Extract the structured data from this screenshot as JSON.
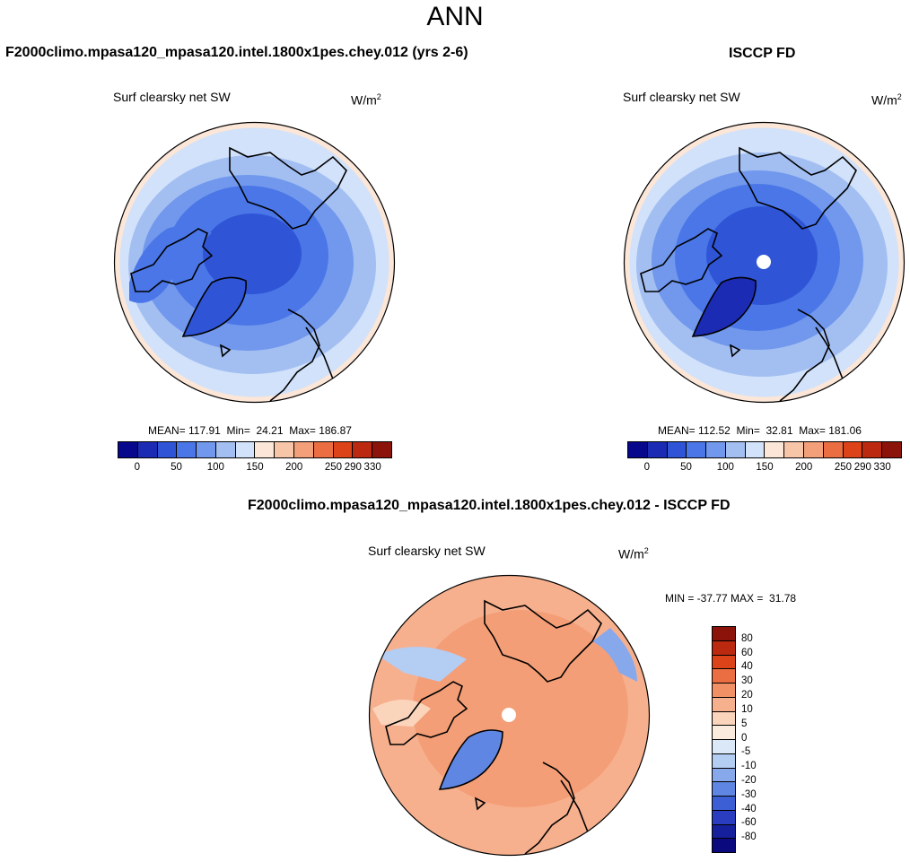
{
  "title": "ANN",
  "panels": {
    "left": {
      "header": "F2000climo.mpasa120_mpasa120.intel.1800x1pes.chey.012 (yrs 2-6)",
      "subtitle": "Surf clearsky net SW",
      "units": "W/m",
      "units_sup": "2",
      "stats": "MEAN= 117.91  Min=  24.21  Max= 186.87",
      "colorbar_ticks": [
        "0",
        "50",
        "100",
        "150",
        "200",
        "250",
        "290",
        "330"
      ]
    },
    "right": {
      "header": "ISCCP FD",
      "subtitle": "Surf clearsky net SW",
      "units": "W/m",
      "units_sup": "2",
      "stats": "MEAN= 112.52  Min=  32.81  Max= 181.06",
      "colorbar_ticks": [
        "0",
        "50",
        "100",
        "150",
        "200",
        "250",
        "290",
        "330"
      ]
    },
    "diff": {
      "header": "F2000climo.mpasa120_mpasa120.intel.1800x1pes.chey.012 - ISCCP FD",
      "subtitle": "Surf clearsky net SW",
      "units": "W/m",
      "units_sup": "2",
      "stats": "MIN = -37.77 MAX =  31.78",
      "colorbar_ticks": [
        "80",
        "60",
        "40",
        "30",
        "20",
        "10",
        "5",
        "0",
        "-5",
        "-10",
        "-20",
        "-30",
        "-40",
        "-60",
        "-80"
      ]
    }
  },
  "colors": {
    "main_scale": [
      "#08088c",
      "#1c2bb4",
      "#2f55d6",
      "#4a76e8",
      "#7198ec",
      "#a3bff2",
      "#d1e2fa",
      "#fbe6d8",
      "#f7c6a8",
      "#f29f7a",
      "#eb6e43",
      "#dc4318",
      "#bb2a10",
      "#8c130a"
    ],
    "diff_scale": [
      "#8c130a",
      "#bb2a10",
      "#dc4318",
      "#eb6e43",
      "#f29065",
      "#f7b08e",
      "#fbd4bc",
      "#fbebdf",
      "#dbe8f8",
      "#b3cdf3",
      "#88a8ec",
      "#5f86e3",
      "#3c5fd6",
      "#2a3cc0",
      "#16209c",
      "#0a0a7e"
    ]
  }
}
